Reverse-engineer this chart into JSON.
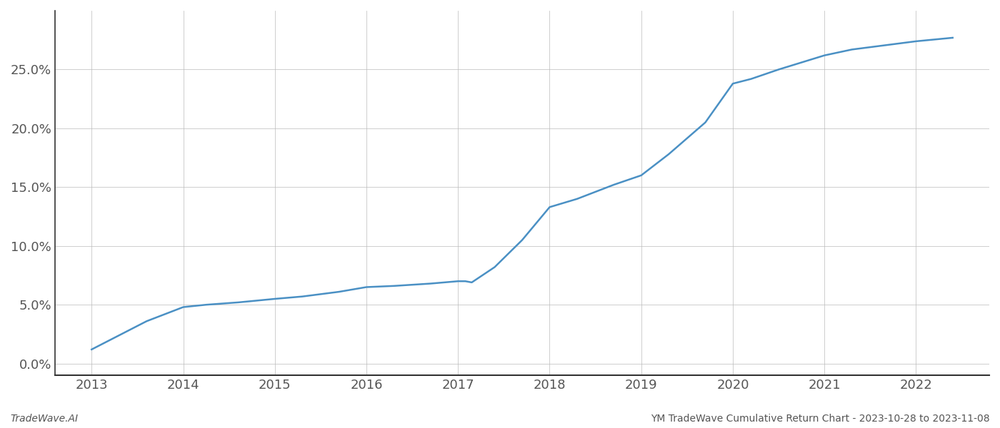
{
  "x_years": [
    2013,
    2013.25,
    2013.6,
    2014,
    2014.25,
    2014.6,
    2015,
    2015.3,
    2015.7,
    2016,
    2016.3,
    2016.7,
    2017,
    2017.08,
    2017.15,
    2017.4,
    2017.7,
    2018.0,
    2018.3,
    2018.7,
    2019.0,
    2019.3,
    2019.7,
    2020.0,
    2020.2,
    2020.5,
    2021.0,
    2021.3,
    2021.7,
    2022.0,
    2022.4
  ],
  "y_values": [
    1.2,
    2.2,
    3.6,
    4.8,
    5.0,
    5.2,
    5.5,
    5.7,
    6.1,
    6.5,
    6.6,
    6.8,
    7.0,
    7.0,
    6.9,
    8.2,
    10.5,
    13.3,
    14.0,
    15.2,
    16.0,
    17.8,
    20.5,
    23.8,
    24.2,
    25.0,
    26.2,
    26.7,
    27.1,
    27.4,
    27.7
  ],
  "line_color": "#4a90c4",
  "line_width": 1.8,
  "xtick_labels": [
    "2013",
    "2014",
    "2015",
    "2016",
    "2017",
    "2018",
    "2019",
    "2020",
    "2021",
    "2022"
  ],
  "xtick_values": [
    2013,
    2014,
    2015,
    2016,
    2017,
    2018,
    2019,
    2020,
    2021,
    2022
  ],
  "ytick_values": [
    0.0,
    5.0,
    10.0,
    15.0,
    20.0,
    25.0
  ],
  "ylim": [
    -1.0,
    30
  ],
  "xlim": [
    2012.6,
    2022.8
  ],
  "grid_color": "#bbbbbb",
  "grid_linestyle": "-",
  "grid_linewidth": 0.5,
  "background_color": "#ffffff",
  "footer_left": "TradeWave.AI",
  "footer_right": "YM TradeWave Cumulative Return Chart - 2023-10-28 to 2023-11-08",
  "footer_fontsize": 10,
  "tick_fontsize": 13,
  "left_spine_color": "#333333",
  "bottom_spine_color": "#333333"
}
